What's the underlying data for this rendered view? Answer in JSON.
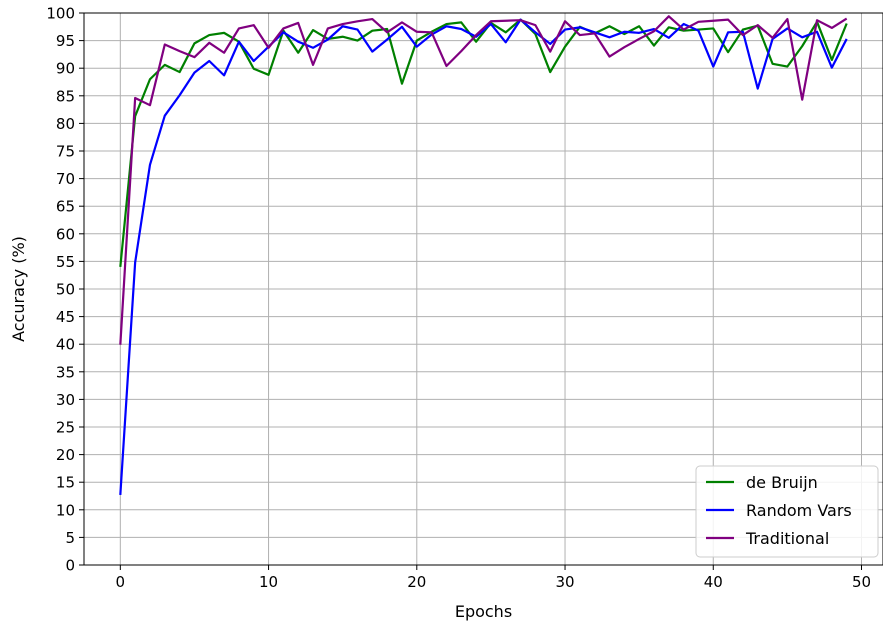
{
  "chart_data": {
    "type": "line",
    "title": "",
    "xlabel": "Epochs",
    "ylabel": "Accuracy (%)",
    "xlim": [
      -2.45,
      51.45
    ],
    "ylim": [
      0,
      100
    ],
    "xticks": [
      0,
      10,
      20,
      30,
      40,
      50
    ],
    "yticks": [
      0,
      5,
      10,
      15,
      20,
      25,
      30,
      35,
      40,
      45,
      50,
      55,
      60,
      65,
      70,
      75,
      80,
      85,
      90,
      95,
      100
    ],
    "grid": true,
    "legend_position": "lower-right",
    "x": [
      0,
      1,
      2,
      3,
      4,
      5,
      6,
      7,
      8,
      9,
      10,
      11,
      12,
      13,
      14,
      15,
      16,
      17,
      18,
      19,
      20,
      21,
      22,
      23,
      24,
      25,
      26,
      27,
      28,
      29,
      30,
      31,
      32,
      33,
      34,
      35,
      36,
      37,
      38,
      39,
      40,
      41,
      42,
      43,
      44,
      45,
      46,
      47,
      48,
      49
    ],
    "series": [
      {
        "name": "de Bruijn",
        "color": "#008000",
        "values": [
          54.0,
          81.3,
          88.0,
          90.6,
          89.3,
          94.5,
          96.0,
          96.4,
          94.8,
          89.9,
          88.8,
          96.8,
          92.8,
          96.9,
          95.3,
          95.7,
          95.0,
          96.8,
          97.1,
          87.2,
          95.0,
          96.6,
          98.0,
          98.3,
          94.8,
          98.2,
          96.5,
          98.8,
          96.2,
          89.3,
          93.9,
          97.5,
          96.3,
          97.6,
          96.2,
          97.6,
          94.1,
          97.4,
          96.8,
          97.0,
          97.2,
          92.9,
          97.0,
          97.7,
          90.8,
          90.3,
          94.0,
          98.4,
          91.5,
          98.1
        ]
      },
      {
        "name": "Random Vars",
        "color": "#0000ff",
        "values": [
          12.7,
          54.8,
          72.5,
          81.4,
          85.1,
          89.2,
          91.3,
          88.7,
          94.8,
          91.3,
          93.9,
          96.5,
          94.8,
          93.7,
          95.2,
          97.6,
          97.0,
          93.0,
          95.2,
          97.5,
          93.9,
          96.1,
          97.6,
          97.1,
          95.7,
          98.0,
          94.7,
          98.8,
          96.5,
          94.4,
          97.0,
          97.4,
          96.5,
          95.6,
          96.6,
          96.4,
          97.1,
          95.5,
          98.0,
          96.8,
          90.3,
          96.5,
          96.6,
          86.3,
          95.3,
          97.2,
          95.6,
          96.6,
          90.1,
          95.3
        ]
      },
      {
        "name": "Traditional",
        "color": "#800080",
        "values": [
          39.9,
          84.6,
          83.3,
          94.3,
          93.1,
          92.0,
          94.6,
          92.8,
          97.2,
          97.8,
          93.7,
          97.2,
          98.2,
          90.6,
          97.2,
          98.0,
          98.5,
          98.9,
          96.5,
          98.3,
          96.6,
          96.5,
          90.4,
          93.1,
          96.0,
          98.5,
          98.6,
          98.7,
          97.8,
          93.0,
          98.5,
          96.0,
          96.3,
          92.1,
          93.8,
          95.3,
          96.7,
          99.4,
          97.0,
          98.4,
          98.6,
          98.8,
          96.0,
          97.8,
          95.5,
          98.9,
          84.3,
          98.7,
          97.3,
          99.0
        ]
      }
    ]
  }
}
